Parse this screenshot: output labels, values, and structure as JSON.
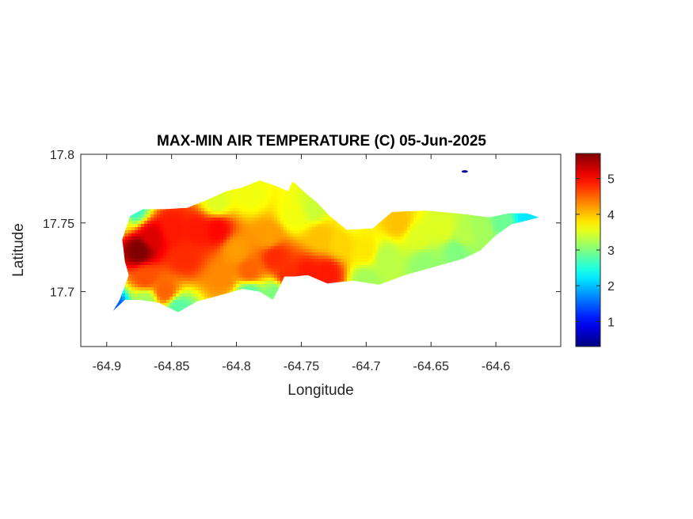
{
  "chart_data": {
    "type": "heatmap",
    "title": "MAX-MIN AIR TEMPERATURE (C) 05-Jun-2025",
    "xlabel": "Longitude",
    "ylabel": "Latitude",
    "xlim": [
      -64.92,
      -64.55
    ],
    "ylim": [
      17.66,
      17.8
    ],
    "x_ticks": [
      -64.9,
      -64.85,
      -64.8,
      -64.75,
      -64.7,
      -64.65,
      -64.6
    ],
    "x_tick_labels": [
      "-64.9",
      "-64.85",
      "-64.8",
      "-64.75",
      "-64.7",
      "-64.65",
      "-64.6"
    ],
    "y_ticks": [
      17.7,
      17.75,
      17.8
    ],
    "y_tick_labels": [
      "17.7",
      "17.75",
      "17.8"
    ],
    "colorbar": {
      "colormap": "jet",
      "range": [
        0.3,
        5.7
      ],
      "ticks": [
        1,
        2,
        3,
        4,
        5
      ],
      "tick_labels": [
        "1",
        "2",
        "3",
        "4",
        "5"
      ],
      "colors": [
        "#00008f",
        "#0000ff",
        "#00ffff",
        "#ffff00",
        "#ff0000",
        "#800000"
      ]
    },
    "grid": false,
    "outline": [
      [
        -64.895,
        17.686
      ],
      [
        -64.886,
        17.694
      ],
      [
        -64.875,
        17.694
      ],
      [
        -64.86,
        17.692
      ],
      [
        -64.845,
        17.685
      ],
      [
        -64.83,
        17.693
      ],
      [
        -64.81,
        17.698
      ],
      [
        -64.795,
        17.702
      ],
      [
        -64.782,
        17.7
      ],
      [
        -64.772,
        17.694
      ],
      [
        -64.767,
        17.703
      ],
      [
        -64.763,
        17.711
      ],
      [
        -64.755,
        17.711
      ],
      [
        -64.745,
        17.712
      ],
      [
        -64.73,
        17.706
      ],
      [
        -64.71,
        17.708
      ],
      [
        -64.69,
        17.705
      ],
      [
        -64.67,
        17.712
      ],
      [
        -64.655,
        17.716
      ],
      [
        -64.64,
        17.72
      ],
      [
        -64.625,
        17.724
      ],
      [
        -64.612,
        17.73
      ],
      [
        -64.6,
        17.741
      ],
      [
        -64.588,
        17.749
      ],
      [
        -64.575,
        17.752
      ],
      [
        -64.567,
        17.754
      ],
      [
        -64.576,
        17.757
      ],
      [
        -64.59,
        17.757
      ],
      [
        -64.605,
        17.754
      ],
      [
        -64.63,
        17.757
      ],
      [
        -64.655,
        17.759
      ],
      [
        -64.68,
        17.758
      ],
      [
        -64.695,
        17.746
      ],
      [
        -64.715,
        17.745
      ],
      [
        -64.728,
        17.755
      ],
      [
        -64.738,
        17.765
      ],
      [
        -64.747,
        17.772
      ],
      [
        -64.755,
        17.779
      ],
      [
        -64.757,
        17.78
      ],
      [
        -64.76,
        17.773
      ],
      [
        -64.77,
        17.777
      ],
      [
        -64.782,
        17.781
      ],
      [
        -64.795,
        17.776
      ],
      [
        -64.808,
        17.773
      ],
      [
        -64.822,
        17.767
      ],
      [
        -64.838,
        17.761
      ],
      [
        -64.855,
        17.76
      ],
      [
        -64.872,
        17.76
      ],
      [
        -64.882,
        17.755
      ],
      [
        -64.888,
        17.738
      ],
      [
        -64.886,
        17.722
      ],
      [
        -64.883,
        17.712
      ],
      [
        -64.886,
        17.704
      ],
      [
        -64.89,
        17.694
      ]
    ],
    "points": [
      {
        "x": -64.875,
        "y": 17.73,
        "v": 5.7
      },
      {
        "x": -64.865,
        "y": 17.74,
        "v": 5.2
      },
      {
        "x": -64.85,
        "y": 17.745,
        "v": 4.9
      },
      {
        "x": -64.83,
        "y": 17.745,
        "v": 4.9
      },
      {
        "x": -64.815,
        "y": 17.745,
        "v": 5.0
      },
      {
        "x": -64.84,
        "y": 17.725,
        "v": 4.8
      },
      {
        "x": -64.87,
        "y": 17.71,
        "v": 4.6
      },
      {
        "x": -64.855,
        "y": 17.7,
        "v": 4.5
      },
      {
        "x": -64.8,
        "y": 17.73,
        "v": 4.2
      },
      {
        "x": -64.79,
        "y": 17.715,
        "v": 4.5
      },
      {
        "x": -64.81,
        "y": 17.71,
        "v": 4.3
      },
      {
        "x": -64.815,
        "y": 17.765,
        "v": 3.5
      },
      {
        "x": -64.79,
        "y": 17.77,
        "v": 3.6
      },
      {
        "x": -64.775,
        "y": 17.74,
        "v": 4.2
      },
      {
        "x": -64.77,
        "y": 17.725,
        "v": 4.8
      },
      {
        "x": -64.76,
        "y": 17.712,
        "v": 4.8
      },
      {
        "x": -64.745,
        "y": 17.713,
        "v": 4.9
      },
      {
        "x": -64.73,
        "y": 17.713,
        "v": 4.9
      },
      {
        "x": -64.755,
        "y": 17.755,
        "v": 3.6
      },
      {
        "x": -64.74,
        "y": 17.76,
        "v": 3.4
      },
      {
        "x": -64.735,
        "y": 17.74,
        "v": 4.0
      },
      {
        "x": -64.72,
        "y": 17.735,
        "v": 3.9
      },
      {
        "x": -64.71,
        "y": 17.75,
        "v": 3.7
      },
      {
        "x": -64.7,
        "y": 17.73,
        "v": 3.8
      },
      {
        "x": -64.685,
        "y": 17.725,
        "v": 3.3
      },
      {
        "x": -64.675,
        "y": 17.75,
        "v": 4.0
      },
      {
        "x": -64.66,
        "y": 17.74,
        "v": 3.5
      },
      {
        "x": -64.64,
        "y": 17.745,
        "v": 3.5
      },
      {
        "x": -64.625,
        "y": 17.74,
        "v": 3.3
      },
      {
        "x": -64.61,
        "y": 17.745,
        "v": 3.2
      },
      {
        "x": -64.595,
        "y": 17.75,
        "v": 2.9
      },
      {
        "x": -64.575,
        "y": 17.754,
        "v": 2.2
      },
      {
        "x": -64.89,
        "y": 17.755,
        "v": 3.8
      },
      {
        "x": -64.88,
        "y": 17.76,
        "v": 2.6
      },
      {
        "x": -64.87,
        "y": 17.693,
        "v": 3.2
      },
      {
        "x": -64.845,
        "y": 17.688,
        "v": 2.8
      },
      {
        "x": -64.79,
        "y": 17.698,
        "v": 2.8
      },
      {
        "x": -64.77,
        "y": 17.698,
        "v": 3.0
      },
      {
        "x": -64.7,
        "y": 17.708,
        "v": 3.2
      },
      {
        "x": -64.655,
        "y": 17.72,
        "v": 3.1
      },
      {
        "x": -64.63,
        "y": 17.73,
        "v": 3.0
      },
      {
        "x": -64.895,
        "y": 17.688,
        "v": 1.5
      },
      {
        "x": -64.9,
        "y": 17.68,
        "v": 0.8
      }
    ],
    "extra_points": [
      {
        "x": -64.624,
        "y": 17.7875,
        "v": 0.5
      }
    ]
  }
}
